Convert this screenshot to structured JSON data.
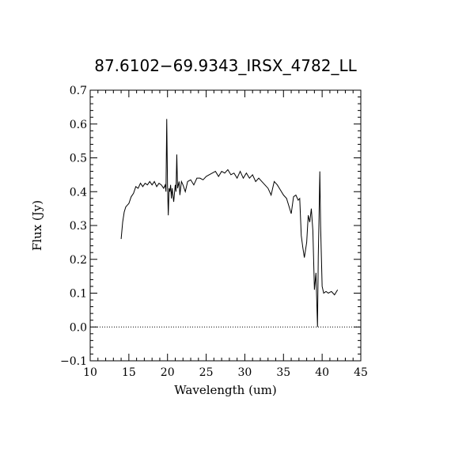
{
  "chart_data": {
    "type": "line",
    "title": "87.6102−69.9343_IRSX_4782_LL",
    "xlabel": "Wavelength (um)",
    "ylabel": "Flux (Jy)",
    "xlim": [
      10,
      45
    ],
    "ylim": [
      -0.1,
      0.7
    ],
    "x_ticks": [
      10,
      15,
      20,
      25,
      30,
      35,
      40,
      45
    ],
    "x_tick_labels": [
      "10",
      "15",
      "20",
      "25",
      "30",
      "35",
      "40",
      "45"
    ],
    "y_ticks": [
      -0.1,
      0.0,
      0.1,
      0.2,
      0.3,
      0.4,
      0.5,
      0.6,
      0.7
    ],
    "y_tick_labels": [
      "−0.1",
      "0.0",
      "0.1",
      "0.2",
      "0.3",
      "0.4",
      "0.5",
      "0.6",
      "0.7"
    ],
    "grid": false,
    "reference_line": {
      "y": 0.0,
      "style": "dotted"
    },
    "series": [
      {
        "x": [
          14.0,
          14.2,
          14.4,
          14.6,
          14.8,
          15.0,
          15.3,
          15.6,
          15.9,
          16.2,
          16.5,
          16.8,
          17.1,
          17.4,
          17.7,
          18.0,
          18.3,
          18.6,
          18.9,
          19.2,
          19.5,
          19.7,
          19.8,
          19.9,
          20.0,
          20.1,
          20.2,
          20.3,
          20.4,
          20.5,
          20.6,
          20.8,
          21.0,
          21.1,
          21.2,
          21.3,
          21.5,
          21.6,
          21.8,
          22.0,
          22.3,
          22.6,
          23.0,
          23.4,
          23.8,
          24.2,
          24.6,
          25.0,
          25.4,
          25.8,
          26.2,
          26.6,
          27.0,
          27.4,
          27.8,
          28.2,
          28.6,
          29.0,
          29.4,
          29.8,
          30.2,
          30.6,
          31.0,
          31.4,
          31.8,
          32.2,
          32.6,
          33.0,
          33.4,
          33.8,
          34.2,
          34.6,
          35.0,
          35.4,
          35.8,
          36.0,
          36.3,
          36.6,
          36.9,
          37.1,
          37.3,
          37.5,
          37.7,
          38.0,
          38.2,
          38.4,
          38.6,
          38.8,
          39.0,
          39.2,
          39.4,
          39.5,
          39.6,
          39.7,
          39.8,
          40.0,
          40.2,
          40.5,
          40.8,
          41.2,
          41.6,
          42.0
        ],
        "y": [
          0.26,
          0.31,
          0.34,
          0.355,
          0.36,
          0.365,
          0.385,
          0.395,
          0.415,
          0.41,
          0.425,
          0.415,
          0.425,
          0.42,
          0.43,
          0.42,
          0.43,
          0.415,
          0.425,
          0.42,
          0.41,
          0.42,
          0.4,
          0.615,
          0.42,
          0.33,
          0.41,
          0.4,
          0.42,
          0.38,
          0.41,
          0.37,
          0.42,
          0.4,
          0.51,
          0.41,
          0.43,
          0.39,
          0.43,
          0.42,
          0.4,
          0.43,
          0.435,
          0.42,
          0.44,
          0.44,
          0.435,
          0.445,
          0.45,
          0.455,
          0.46,
          0.445,
          0.46,
          0.455,
          0.465,
          0.45,
          0.455,
          0.44,
          0.46,
          0.44,
          0.455,
          0.44,
          0.45,
          0.43,
          0.44,
          0.43,
          0.42,
          0.41,
          0.39,
          0.43,
          0.42,
          0.405,
          0.39,
          0.38,
          0.35,
          0.335,
          0.385,
          0.39,
          0.375,
          0.38,
          0.27,
          0.235,
          0.205,
          0.25,
          0.33,
          0.31,
          0.35,
          0.285,
          0.11,
          0.16,
          0.0,
          0.21,
          0.325,
          0.46,
          0.3,
          0.12,
          0.1,
          0.105,
          0.1,
          0.105,
          0.095,
          0.11
        ]
      }
    ]
  }
}
